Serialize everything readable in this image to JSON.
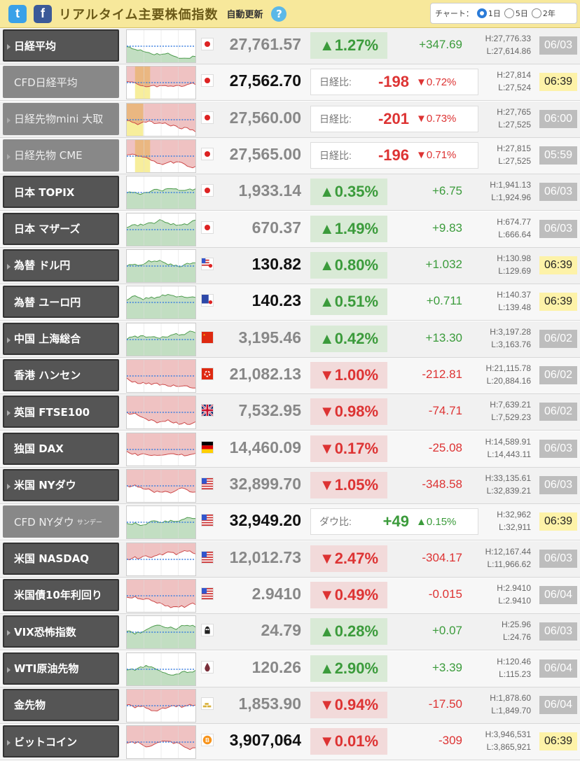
{
  "header": {
    "title": "リアルタイム主要株価指数",
    "auto_update": "自動更新",
    "help": "?",
    "chart_label": "チャート：",
    "twitter_icon": "t",
    "facebook_icon": "f",
    "options": [
      {
        "label": "1日",
        "selected": true
      },
      {
        "label": "5日",
        "selected": false
      },
      {
        "label": "2年",
        "selected": false
      }
    ]
  },
  "colors": {
    "up": "#3b9b3b",
    "down": "#d33",
    "header_bg": "#f7e89b",
    "live_bg": "#fdf2a8"
  },
  "rows": [
    {
      "name": "日経平均",
      "type": "index",
      "flag": "jp",
      "price": "27,761.57",
      "pct": "▲1.27%",
      "chg": "+347.69",
      "dir": "up",
      "high": "H:27,776.33",
      "low": "L:27,614.86",
      "date": "06/03",
      "live": false,
      "dark": false
    },
    {
      "name": "CFD日経平均",
      "type": "cfd",
      "flag": "jp",
      "price": "27,562.70",
      "cmp_label": "日経比:",
      "cmp_val": "-198",
      "cmp_pct": "▼0.72%",
      "dir": "dn",
      "high": "H:27,814",
      "low": "L:27,524",
      "date": "06:39",
      "live": true,
      "dark": true
    },
    {
      "name": "日経先物mini 大取",
      "type": "cfd",
      "flag": "jp",
      "price": "27,560.00",
      "cmp_label": "日経比:",
      "cmp_val": "-201",
      "cmp_pct": "▼0.73%",
      "dir": "dn",
      "high": "H:27,765",
      "low": "L:27,525",
      "date": "06:00",
      "live": false,
      "dark": false
    },
    {
      "name": "日経先物 CME",
      "type": "cfd",
      "flag": "jp",
      "price": "27,565.00",
      "cmp_label": "日経比:",
      "cmp_val": "-196",
      "cmp_pct": "▼0.71%",
      "dir": "dn",
      "high": "H:27,815",
      "low": "L:27,525",
      "date": "05:59",
      "live": false,
      "dark": false
    },
    {
      "name": "日本 TOPIX",
      "type": "index",
      "flag": "jp",
      "price": "1,933.14",
      "pct": "▲0.35%",
      "chg": "+6.75",
      "dir": "up",
      "high": "H:1,941.13",
      "low": "L:1,924.96",
      "date": "06/03",
      "live": false,
      "dark": false
    },
    {
      "name": "日本 マザーズ",
      "type": "index",
      "flag": "jp",
      "price": "670.37",
      "pct": "▲1.49%",
      "chg": "+9.83",
      "dir": "up",
      "high": "H:674.77",
      "low": "L:666.64",
      "date": "06/03",
      "live": false,
      "dark": false
    },
    {
      "name": "為替 ドル円",
      "type": "index",
      "flag": "usjp",
      "price": "130.82",
      "pct": "▲0.80%",
      "chg": "+1.032",
      "dir": "up",
      "high": "H:130.98",
      "low": "L:129.69",
      "date": "06:39",
      "live": true,
      "dark": true
    },
    {
      "name": "為替 ユーロ円",
      "type": "index",
      "flag": "eujp",
      "price": "140.23",
      "pct": "▲0.51%",
      "chg": "+0.711",
      "dir": "up",
      "high": "H:140.37",
      "low": "L:139.48",
      "date": "06:39",
      "live": true,
      "dark": true
    },
    {
      "name": "中国 上海総合",
      "type": "index",
      "flag": "cn",
      "price": "3,195.46",
      "pct": "▲0.42%",
      "chg": "+13.30",
      "dir": "up",
      "high": "H:3,197.28",
      "low": "L:3,163.76",
      "date": "06/02",
      "live": false,
      "dark": false
    },
    {
      "name": "香港 ハンセン",
      "type": "index",
      "flag": "hk",
      "price": "21,082.13",
      "pct": "▼1.00%",
      "chg": "-212.81",
      "dir": "dn",
      "high": "H:21,115.78",
      "low": "L:20,884.16",
      "date": "06/02",
      "live": false,
      "dark": false
    },
    {
      "name": "英国 FTSE100",
      "type": "index",
      "flag": "uk",
      "price": "7,532.95",
      "pct": "▼0.98%",
      "chg": "-74.71",
      "dir": "dn",
      "high": "H:7,639.21",
      "low": "L:7,529.23",
      "date": "06/02",
      "live": false,
      "dark": false
    },
    {
      "name": "独国 DAX",
      "type": "index",
      "flag": "de",
      "price": "14,460.09",
      "pct": "▼0.17%",
      "chg": "-25.08",
      "dir": "dn",
      "high": "H:14,589.91",
      "low": "L:14,443.11",
      "date": "06/03",
      "live": false,
      "dark": false
    },
    {
      "name": "米国 NYダウ",
      "type": "index",
      "flag": "us",
      "price": "32,899.70",
      "pct": "▼1.05%",
      "chg": "-348.58",
      "dir": "dn",
      "high": "H:33,135.61",
      "low": "L:32,839.21",
      "date": "06/03",
      "live": false,
      "dark": false
    },
    {
      "name": "CFD NYダウ",
      "name_sub": "サンデー",
      "type": "cfd",
      "flag": "us",
      "price": "32,949.20",
      "cmp_label": "ダウ比:",
      "cmp_val": "+49",
      "cmp_pct": "▲0.15%",
      "dir": "up",
      "high": "H:32,962",
      "low": "L:32,911",
      "date": "06:39",
      "live": true,
      "dark": true
    },
    {
      "name": "米国 NASDAQ",
      "type": "index",
      "flag": "us",
      "price": "12,012.73",
      "pct": "▼2.47%",
      "chg": "-304.17",
      "dir": "dn",
      "high": "H:12,167.44",
      "low": "L:11,966.62",
      "date": "06/03",
      "live": false,
      "dark": false
    },
    {
      "name": "米国債10年利回り",
      "type": "index",
      "flag": "us",
      "price": "2.9410",
      "pct": "▼0.49%",
      "chg": "-0.015",
      "dir": "dn",
      "high": "H:2.9410",
      "low": "L:2.9410",
      "date": "06/04",
      "live": false,
      "dark": false
    },
    {
      "name": "VIX恐怖指数",
      "type": "index",
      "flag": "vix",
      "price": "24.79",
      "pct": "▲0.28%",
      "chg": "+0.07",
      "dir": "up",
      "high": "H:25.96",
      "low": "L:24.76",
      "date": "06/03",
      "live": false,
      "dark": false
    },
    {
      "name": "WTI原油先物",
      "type": "index",
      "flag": "oil",
      "price": "120.26",
      "pct": "▲2.90%",
      "chg": "+3.39",
      "dir": "up",
      "high": "H:120.46",
      "low": "L:115.23",
      "date": "06/04",
      "live": false,
      "dark": false
    },
    {
      "name": "金先物",
      "type": "index",
      "flag": "gold",
      "price": "1,853.90",
      "pct": "▼0.94%",
      "chg": "-17.50",
      "dir": "dn",
      "high": "H:1,878.60",
      "low": "L:1,849.70",
      "date": "06/04",
      "live": false,
      "dark": false
    },
    {
      "name": "ビットコイン",
      "type": "index",
      "flag": "btc",
      "price": "3,907,064",
      "pct": "▼0.01%",
      "chg": "-309",
      "dir": "dn",
      "high": "H:3,946,531",
      "low": "L:3,865,921",
      "date": "06:39",
      "live": true,
      "dark": true
    }
  ]
}
